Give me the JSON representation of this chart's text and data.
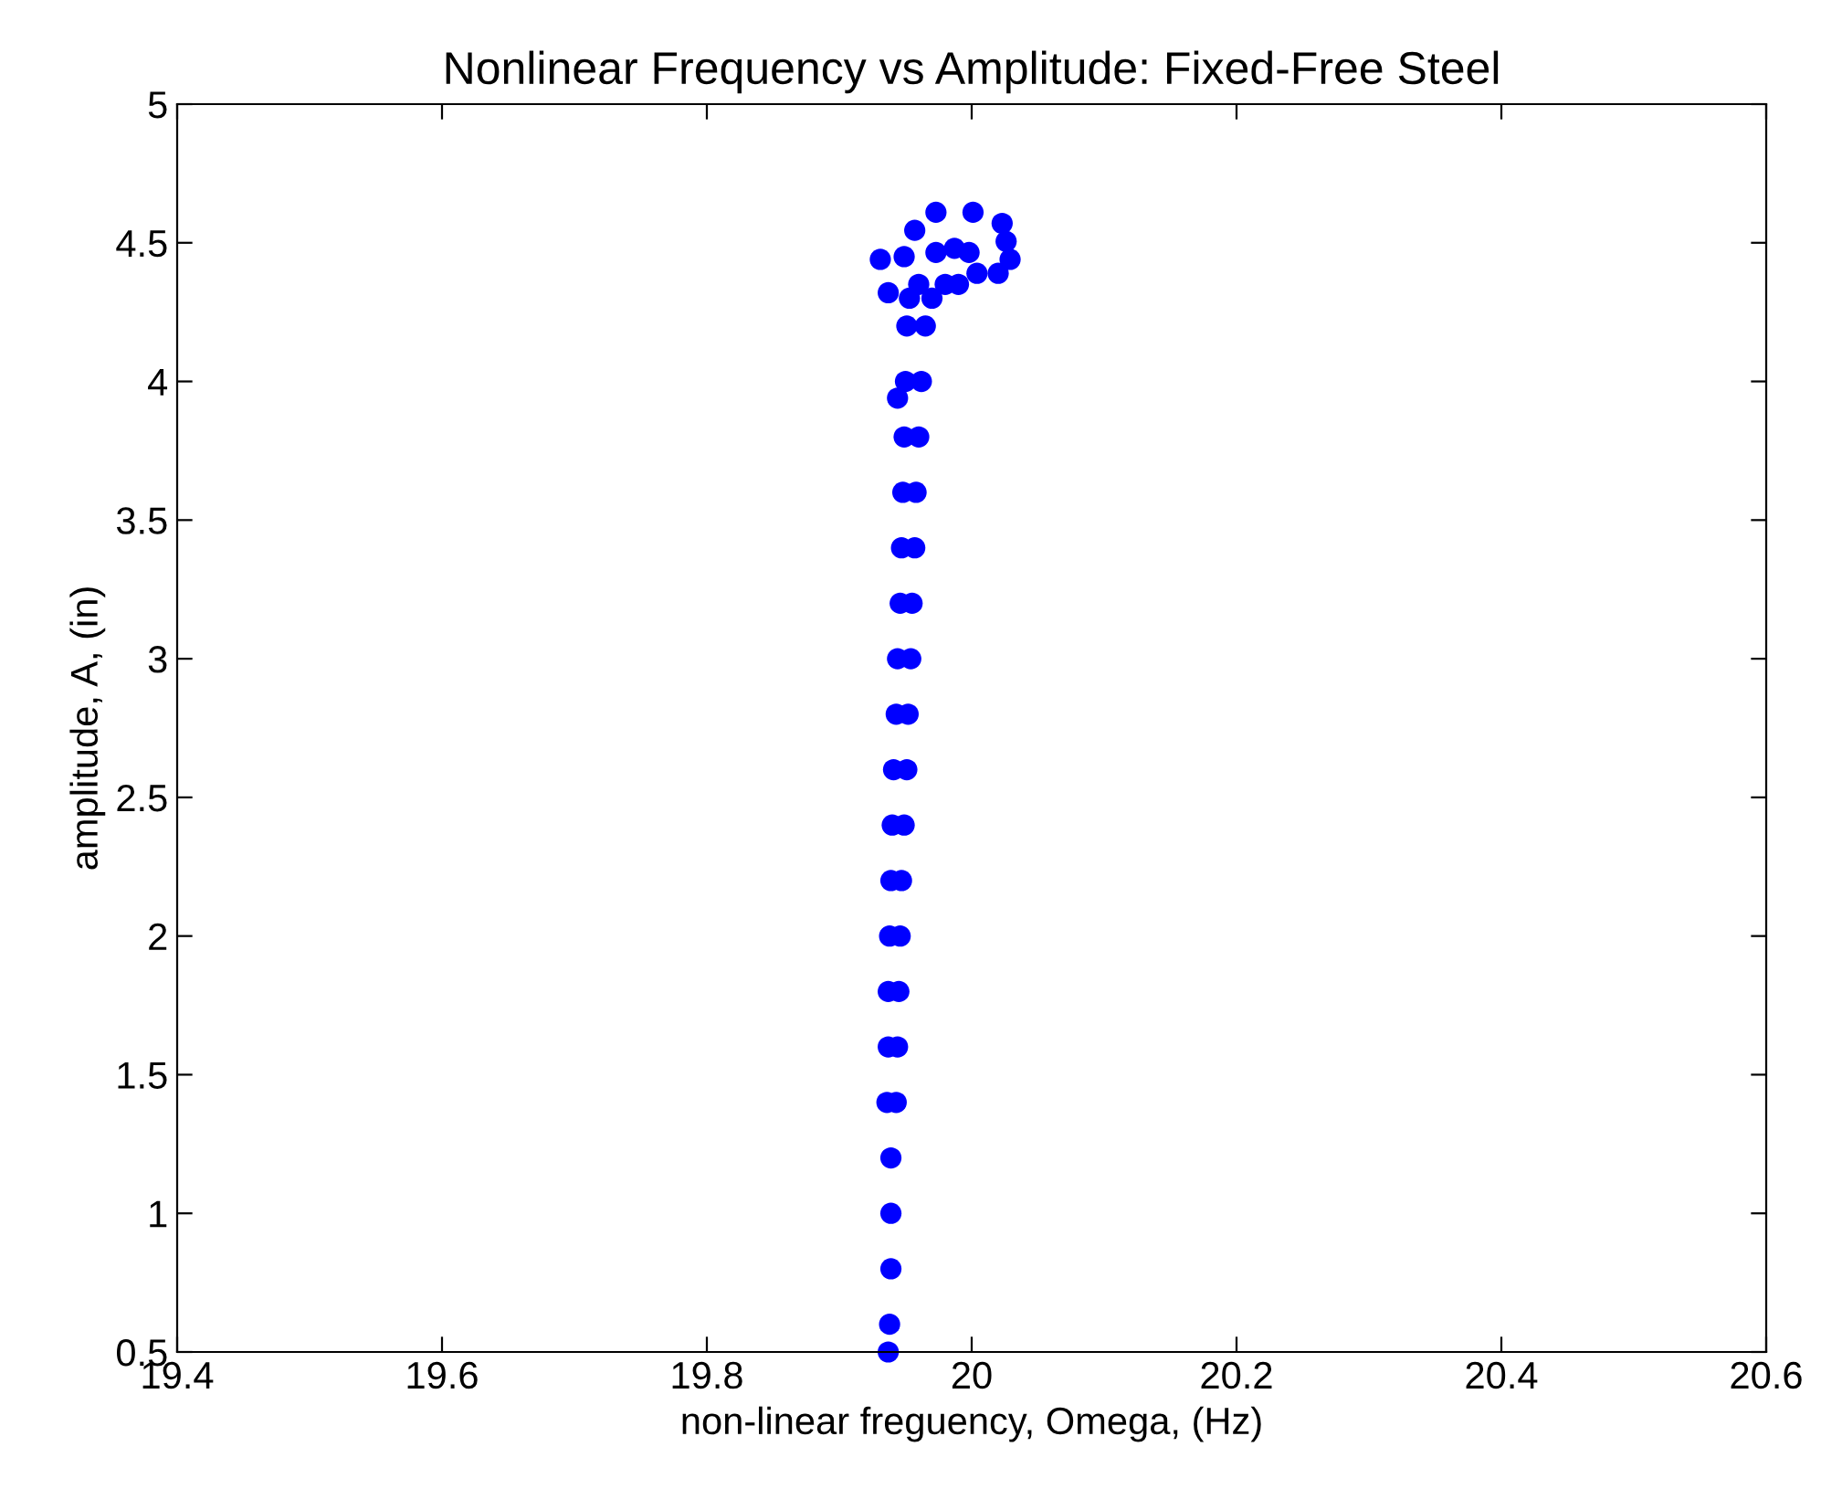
{
  "chart_data": {
    "type": "scatter",
    "title": "Nonlinear Frequency vs Amplitude: Fixed-Free Steel",
    "xlabel": "non-linear freguency, Omega, (Hz)",
    "ylabel": "amplitude, A, (in)",
    "xlim": [
      19.4,
      20.6
    ],
    "ylim": [
      0.5,
      5
    ],
    "xticks": [
      19.4,
      19.6,
      19.8,
      20,
      20.2,
      20.4,
      20.6
    ],
    "yticks": [
      0.5,
      1,
      1.5,
      2,
      2.5,
      3,
      3.5,
      4,
      4.5,
      5
    ],
    "grid": false,
    "legend": false,
    "marker": "circle",
    "series": [
      {
        "color": "#0000ff",
        "x": [
          19.937,
          19.938,
          19.939,
          19.939,
          19.939,
          19.936,
          19.943,
          19.937,
          19.944,
          19.937,
          19.945,
          19.938,
          19.946,
          19.939,
          19.947,
          19.94,
          19.949,
          19.941,
          19.951,
          19.943,
          19.952,
          19.944,
          19.954,
          19.946,
          19.955,
          19.947,
          19.957,
          19.948,
          19.958,
          19.949,
          19.96,
          19.95,
          19.962,
          19.951,
          19.965,
          19.953,
          19.97,
          19.96,
          19.98,
          19.99,
          19.973,
          20.001,
          19.957,
          20.023,
          20.026,
          20.029,
          20.02,
          19.931,
          19.949,
          19.937,
          19.973,
          19.987,
          19.998,
          20.004,
          19.944
        ],
        "values": [
          0.5,
          0.6,
          0.8,
          1.0,
          1.2,
          1.4,
          1.4,
          1.6,
          1.6,
          1.8,
          1.8,
          2.0,
          2.0,
          2.2,
          2.2,
          2.4,
          2.4,
          2.6,
          2.6,
          2.8,
          2.8,
          3.0,
          3.0,
          3.2,
          3.2,
          3.4,
          3.4,
          3.6,
          3.6,
          3.8,
          3.8,
          4.0,
          4.0,
          4.2,
          4.2,
          4.3,
          4.3,
          4.35,
          4.35,
          4.35,
          4.61,
          4.61,
          4.545,
          4.57,
          4.505,
          4.44,
          4.39,
          4.44,
          4.45,
          4.32,
          4.465,
          4.48,
          4.465,
          4.39,
          3.94
        ]
      }
    ]
  }
}
